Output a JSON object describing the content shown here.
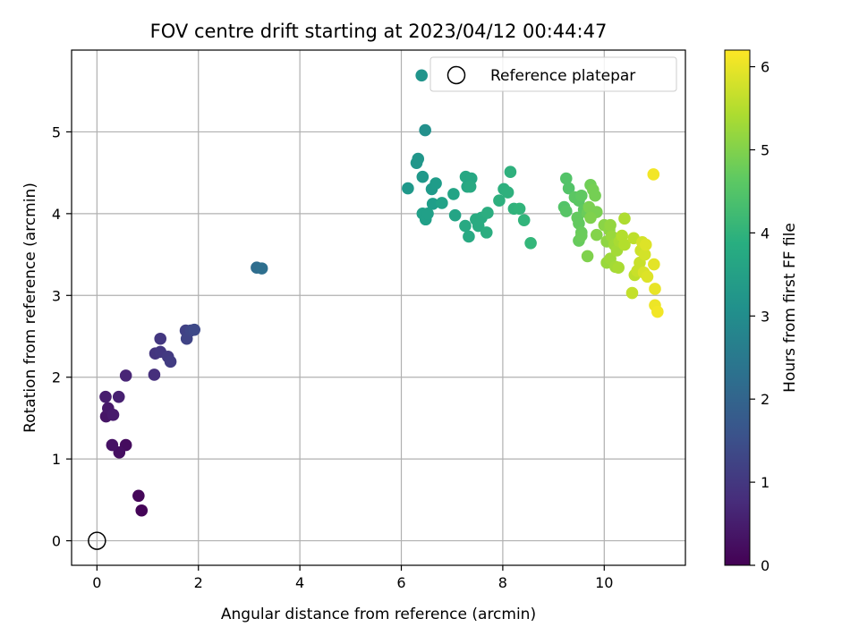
{
  "chart_data": {
    "type": "scatter",
    "title": "FOV centre drift starting at 2023/04/12 00:44:47",
    "xlabel": "Angular distance from reference (arcmin)",
    "ylabel": "Rotation from reference (arcmin)",
    "xlim": [
      -0.5,
      11.6
    ],
    "ylim": [
      -0.3,
      6.0
    ],
    "xticks": [
      0,
      2,
      4,
      6,
      8,
      10
    ],
    "yticks": [
      0,
      1,
      2,
      3,
      4,
      5
    ],
    "grid": true,
    "legend": {
      "placement": "top-right",
      "entries": [
        "Reference platepar"
      ]
    },
    "colorbar": {
      "label": "Hours from first FF file",
      "range": [
        0,
        6.2
      ],
      "ticks": [
        0,
        1,
        2,
        3,
        4,
        5,
        6
      ],
      "colormap": "viridis"
    },
    "reference": {
      "name": "Reference platepar",
      "x": 0,
      "y": 0
    },
    "points": [
      {
        "x": 0.88,
        "y": 0.37,
        "h": 0.05
      },
      {
        "x": 0.82,
        "y": 0.55,
        "h": 0.1
      },
      {
        "x": 0.57,
        "y": 1.17,
        "h": 0.2
      },
      {
        "x": 0.44,
        "y": 1.08,
        "h": 0.25
      },
      {
        "x": 0.3,
        "y": 1.17,
        "h": 0.3
      },
      {
        "x": 0.18,
        "y": 1.52,
        "h": 0.35
      },
      {
        "x": 0.22,
        "y": 1.62,
        "h": 0.4
      },
      {
        "x": 0.32,
        "y": 1.54,
        "h": 0.45
      },
      {
        "x": 0.17,
        "y": 1.76,
        "h": 0.5
      },
      {
        "x": 0.43,
        "y": 1.76,
        "h": 0.55
      },
      {
        "x": 0.57,
        "y": 2.02,
        "h": 0.65
      },
      {
        "x": 1.13,
        "y": 2.03,
        "h": 0.85
      },
      {
        "x": 1.15,
        "y": 2.29,
        "h": 0.95
      },
      {
        "x": 1.25,
        "y": 2.31,
        "h": 1.0
      },
      {
        "x": 1.25,
        "y": 2.47,
        "h": 1.0
      },
      {
        "x": 1.4,
        "y": 2.25,
        "h": 1.05
      },
      {
        "x": 1.45,
        "y": 2.19,
        "h": 1.1
      },
      {
        "x": 1.75,
        "y": 2.57,
        "h": 1.2
      },
      {
        "x": 1.77,
        "y": 2.47,
        "h": 1.25
      },
      {
        "x": 1.85,
        "y": 2.57,
        "h": 1.3
      },
      {
        "x": 1.92,
        "y": 2.58,
        "h": 1.35
      },
      {
        "x": 3.15,
        "y": 3.34,
        "h": 2.2
      },
      {
        "x": 3.25,
        "y": 3.33,
        "h": 2.25
      },
      {
        "x": 6.4,
        "y": 5.69,
        "h": 3.2
      },
      {
        "x": 6.47,
        "y": 5.02,
        "h": 3.1
      },
      {
        "x": 6.3,
        "y": 4.62,
        "h": 3.25
      },
      {
        "x": 6.33,
        "y": 4.67,
        "h": 3.25
      },
      {
        "x": 6.42,
        "y": 4.45,
        "h": 3.3
      },
      {
        "x": 6.13,
        "y": 4.31,
        "h": 3.3
      },
      {
        "x": 6.6,
        "y": 4.3,
        "h": 3.35
      },
      {
        "x": 6.68,
        "y": 4.37,
        "h": 3.4
      },
      {
        "x": 6.62,
        "y": 4.12,
        "h": 3.45
      },
      {
        "x": 6.42,
        "y": 4.0,
        "h": 3.5
      },
      {
        "x": 6.48,
        "y": 3.93,
        "h": 3.5
      },
      {
        "x": 6.52,
        "y": 4.0,
        "h": 3.5
      },
      {
        "x": 6.8,
        "y": 4.13,
        "h": 3.55
      },
      {
        "x": 7.03,
        "y": 4.24,
        "h": 3.6
      },
      {
        "x": 7.06,
        "y": 3.98,
        "h": 3.6
      },
      {
        "x": 7.27,
        "y": 4.45,
        "h": 3.7
      },
      {
        "x": 7.3,
        "y": 4.33,
        "h": 3.7
      },
      {
        "x": 7.38,
        "y": 4.43,
        "h": 3.7
      },
      {
        "x": 7.36,
        "y": 4.33,
        "h": 3.75
      },
      {
        "x": 7.26,
        "y": 3.85,
        "h": 3.75
      },
      {
        "x": 7.33,
        "y": 3.72,
        "h": 3.75
      },
      {
        "x": 7.47,
        "y": 3.93,
        "h": 3.8
      },
      {
        "x": 7.52,
        "y": 3.85,
        "h": 3.8
      },
      {
        "x": 7.58,
        "y": 3.95,
        "h": 3.8
      },
      {
        "x": 7.7,
        "y": 4.01,
        "h": 3.85
      },
      {
        "x": 7.68,
        "y": 3.77,
        "h": 3.85
      },
      {
        "x": 7.93,
        "y": 4.16,
        "h": 3.9
      },
      {
        "x": 8.02,
        "y": 4.3,
        "h": 3.9
      },
      {
        "x": 8.1,
        "y": 4.26,
        "h": 3.95
      },
      {
        "x": 8.15,
        "y": 4.51,
        "h": 3.95
      },
      {
        "x": 8.22,
        "y": 4.06,
        "h": 4.0
      },
      {
        "x": 8.33,
        "y": 4.06,
        "h": 4.05
      },
      {
        "x": 8.42,
        "y": 3.92,
        "h": 4.05
      },
      {
        "x": 8.55,
        "y": 3.64,
        "h": 4.1
      },
      {
        "x": 9.25,
        "y": 4.43,
        "h": 4.5
      },
      {
        "x": 9.3,
        "y": 4.31,
        "h": 4.5
      },
      {
        "x": 9.21,
        "y": 4.08,
        "h": 4.5
      },
      {
        "x": 9.25,
        "y": 4.03,
        "h": 4.55
      },
      {
        "x": 9.42,
        "y": 4.2,
        "h": 4.6
      },
      {
        "x": 9.5,
        "y": 4.16,
        "h": 4.6
      },
      {
        "x": 9.55,
        "y": 4.22,
        "h": 4.65
      },
      {
        "x": 9.6,
        "y": 4.05,
        "h": 4.65
      },
      {
        "x": 9.47,
        "y": 3.95,
        "h": 4.7
      },
      {
        "x": 9.5,
        "y": 3.88,
        "h": 4.7
      },
      {
        "x": 9.55,
        "y": 3.77,
        "h": 4.75
      },
      {
        "x": 9.5,
        "y": 3.67,
        "h": 4.75
      },
      {
        "x": 9.55,
        "y": 3.73,
        "h": 4.8
      },
      {
        "x": 9.67,
        "y": 4.01,
        "h": 4.8
      },
      {
        "x": 9.73,
        "y": 4.35,
        "h": 4.85
      },
      {
        "x": 9.78,
        "y": 4.29,
        "h": 4.9
      },
      {
        "x": 9.82,
        "y": 4.22,
        "h": 4.9
      },
      {
        "x": 9.85,
        "y": 4.02,
        "h": 4.95
      },
      {
        "x": 9.7,
        "y": 4.08,
        "h": 4.95
      },
      {
        "x": 9.73,
        "y": 3.95,
        "h": 5.0
      },
      {
        "x": 9.67,
        "y": 3.48,
        "h": 5.0
      },
      {
        "x": 9.85,
        "y": 3.74,
        "h": 5.05
      },
      {
        "x": 10.0,
        "y": 3.86,
        "h": 5.1
      },
      {
        "x": 10.05,
        "y": 3.66,
        "h": 5.15
      },
      {
        "x": 10.1,
        "y": 3.8,
        "h": 5.15
      },
      {
        "x": 10.12,
        "y": 3.86,
        "h": 5.2
      },
      {
        "x": 10.15,
        "y": 3.72,
        "h": 5.25
      },
      {
        "x": 10.05,
        "y": 3.4,
        "h": 5.25
      },
      {
        "x": 10.12,
        "y": 3.45,
        "h": 5.3
      },
      {
        "x": 10.2,
        "y": 3.62,
        "h": 5.3
      },
      {
        "x": 10.25,
        "y": 3.55,
        "h": 5.35
      },
      {
        "x": 10.22,
        "y": 3.35,
        "h": 5.35
      },
      {
        "x": 10.28,
        "y": 3.34,
        "h": 5.4
      },
      {
        "x": 10.3,
        "y": 3.66,
        "h": 5.4
      },
      {
        "x": 10.4,
        "y": 3.94,
        "h": 5.45
      },
      {
        "x": 10.35,
        "y": 3.73,
        "h": 5.5
      },
      {
        "x": 10.4,
        "y": 3.62,
        "h": 5.5
      },
      {
        "x": 10.58,
        "y": 3.7,
        "h": 5.6
      },
      {
        "x": 10.6,
        "y": 3.25,
        "h": 5.6
      },
      {
        "x": 10.55,
        "y": 3.03,
        "h": 5.65
      },
      {
        "x": 10.65,
        "y": 3.3,
        "h": 5.7
      },
      {
        "x": 10.7,
        "y": 3.4,
        "h": 5.7
      },
      {
        "x": 10.72,
        "y": 3.55,
        "h": 5.75
      },
      {
        "x": 10.75,
        "y": 3.65,
        "h": 5.8
      },
      {
        "x": 10.8,
        "y": 3.5,
        "h": 5.8
      },
      {
        "x": 10.78,
        "y": 3.28,
        "h": 5.85
      },
      {
        "x": 10.85,
        "y": 3.23,
        "h": 5.9
      },
      {
        "x": 10.82,
        "y": 3.62,
        "h": 5.9
      },
      {
        "x": 10.98,
        "y": 3.38,
        "h": 5.95
      },
      {
        "x": 11.0,
        "y": 3.08,
        "h": 6.0
      },
      {
        "x": 11.0,
        "y": 2.88,
        "h": 6.05
      },
      {
        "x": 11.05,
        "y": 2.8,
        "h": 6.1
      },
      {
        "x": 10.97,
        "y": 4.48,
        "h": 6.1
      }
    ]
  }
}
